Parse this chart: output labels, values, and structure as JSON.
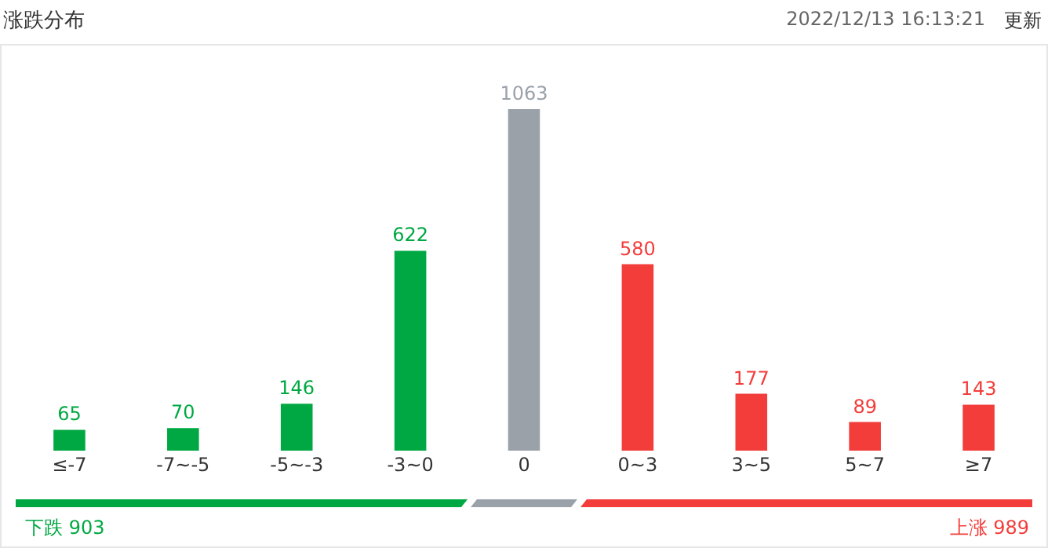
{
  "chart_data": {
    "type": "bar",
    "title": "涨跌分布",
    "categories": [
      "≤-7",
      "-7~-5",
      "-5~-3",
      "-3~0",
      "0",
      "0~3",
      "3~5",
      "5~7",
      "≥7"
    ],
    "values": [
      65,
      70,
      146,
      622,
      1063,
      580,
      177,
      89,
      143
    ],
    "colors": [
      "#00a843",
      "#00a843",
      "#00a843",
      "#00a843",
      "#9aa1a9",
      "#f23d3a",
      "#f23d3a",
      "#f23d3a",
      "#f23d3a"
    ],
    "data_labels": true,
    "tick_labels": "x",
    "annotations": [
      "2022/12/13 16:13:21",
      "更新",
      "下跌 903",
      "上涨 989"
    ]
  }
}
